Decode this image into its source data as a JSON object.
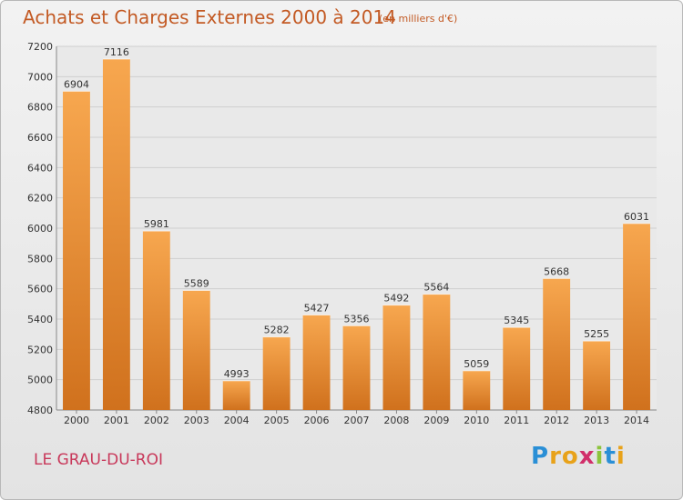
{
  "header": {
    "title": "Achats et Charges Externes 2000 à 2014",
    "subtitle": "(en milliers d'€)"
  },
  "footer": {
    "place": "LE GRAU-DU-ROI",
    "logo": [
      "P",
      "r",
      "o",
      "x",
      "i",
      "t",
      "i"
    ]
  },
  "colors": {
    "bar_light": "#f7a74f",
    "bar_dark": "#d0711d",
    "title": "#c35a24",
    "place": "#c8385a",
    "grid": "#cfcfcf",
    "plot_background": "#e9e9e9"
  },
  "chart_data": {
    "type": "bar",
    "title": "Achats et Charges Externes 2000 à 2014",
    "subtitle": "(en milliers d'€)",
    "categories": [
      "2000",
      "2001",
      "2002",
      "2003",
      "2004",
      "2005",
      "2006",
      "2007",
      "2008",
      "2009",
      "2010",
      "2011",
      "2012",
      "2013",
      "2014"
    ],
    "values": [
      6904,
      7116,
      5981,
      5589,
      4993,
      5282,
      5427,
      5356,
      5492,
      5564,
      5059,
      5345,
      5668,
      5255,
      6031
    ],
    "ylim": [
      4800,
      7200
    ],
    "yticks": [
      4800,
      5000,
      5200,
      5400,
      5600,
      5800,
      6000,
      6200,
      6400,
      6600,
      6800,
      7000,
      7200
    ],
    "grid": true,
    "data_labels": true,
    "legend": "none"
  }
}
